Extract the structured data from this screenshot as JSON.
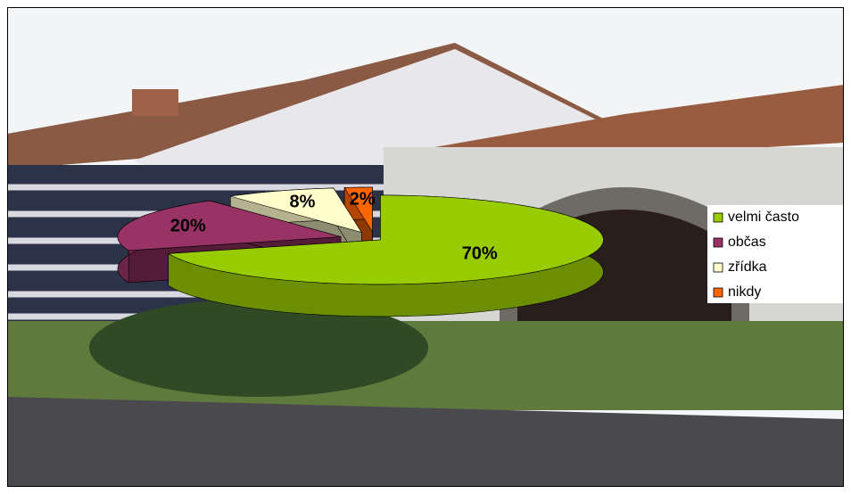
{
  "chart_data": {
    "type": "pie",
    "categories": [
      "velmi často",
      "občas",
      "zřídka",
      "nikdy"
    ],
    "values": [
      70,
      20,
      8,
      2
    ],
    "value_labels": [
      "70%",
      "20%",
      "8%",
      "2%"
    ],
    "colors": [
      "#99cc00",
      "#993366",
      "#ffffcc",
      "#ff6600"
    ],
    "legend": "right"
  }
}
